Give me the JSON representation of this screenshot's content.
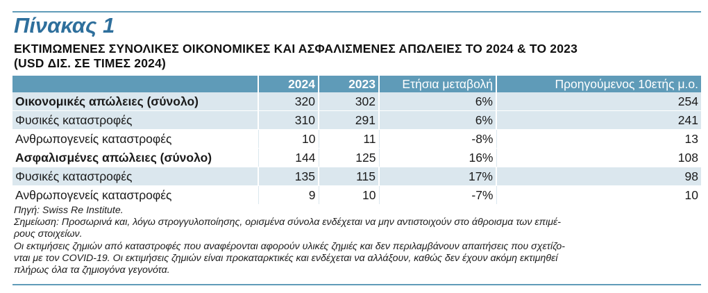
{
  "title": "Πίνακας 1",
  "subtitle_line1": "ΕΚΤΙΜΩΜΕΝΕΣ ΣΥΝΟΛΙΚΕΣ ΟΙΚΟΝΟΜΙΚΕΣ ΚΑΙ ΑΣΦΑΛΙΣΜΕΝΕΣ ΑΠΩΛΕΙΕΣ ΤΟ 2024 & ΤΟ 2023",
  "subtitle_line2": "(USD ΔΙΣ. ΣΕ ΤΙΜΕΣ 2024)",
  "table": {
    "headers": [
      "",
      "2024",
      "2023",
      "Ετήσια μεταβολή",
      "Προηγούμενος 10ετής μ.ο."
    ],
    "rows": [
      {
        "label": "Οικονομικές απώλειες (σύνολο)",
        "v2024": "320",
        "v2023": "302",
        "change": "6%",
        "avg10": "254"
      },
      {
        "label": "Φυσικές καταστροφές",
        "v2024": "310",
        "v2023": "291",
        "change": "6%",
        "avg10": "241"
      },
      {
        "label": "Ανθρωπογενείς καταστροφές",
        "v2024": "10",
        "v2023": "11",
        "change": "-8%",
        "avg10": "13"
      },
      {
        "label": "Ασφαλισμένες απώλειες (σύνολο)",
        "v2024": "144",
        "v2023": "125",
        "change": "16%",
        "avg10": "108"
      },
      {
        "label": "Φυσικές καταστροφές",
        "v2024": "135",
        "v2023": "115",
        "change": "17%",
        "avg10": "98"
      },
      {
        "label": "Ανθρωπογενείς καταστροφές",
        "v2024": "9",
        "v2023": "10",
        "change": "-7%",
        "avg10": "10"
      }
    ]
  },
  "notes": {
    "source": "Πηγή: Swiss Re Institute.",
    "note1_line1": "Σημείωση: Προσωρινά και, λόγω στρογγυλοποίησης, ορισμένα σύνολα ενδέχεται να μην αντιστοιχούν στο άθροισμα των επιμέ-",
    "note1_line2": "ρους στοιχείων.",
    "note2_line1": "Οι εκτιμήσεις ζημιών από καταστροφές που αναφέρονται αφορούν υλικές ζημιές και δεν περιλαμβάνουν απαιτήσεις που σχετίζο-",
    "note2_line2": "νται με τον COVID-19. Οι εκτιμήσεις ζημιών είναι προκαταρκτικές και ενδέχεται να αλλάξουν, καθώς δεν έχουν ακόμη εκτιμηθεί",
    "note2_line3": "πλήρως όλα τα ζημιογόνα γεγονότα."
  },
  "colors": {
    "accent": "#5f9bb8",
    "title": "#2e6f9c",
    "row_shade": "#dbe7ee"
  }
}
